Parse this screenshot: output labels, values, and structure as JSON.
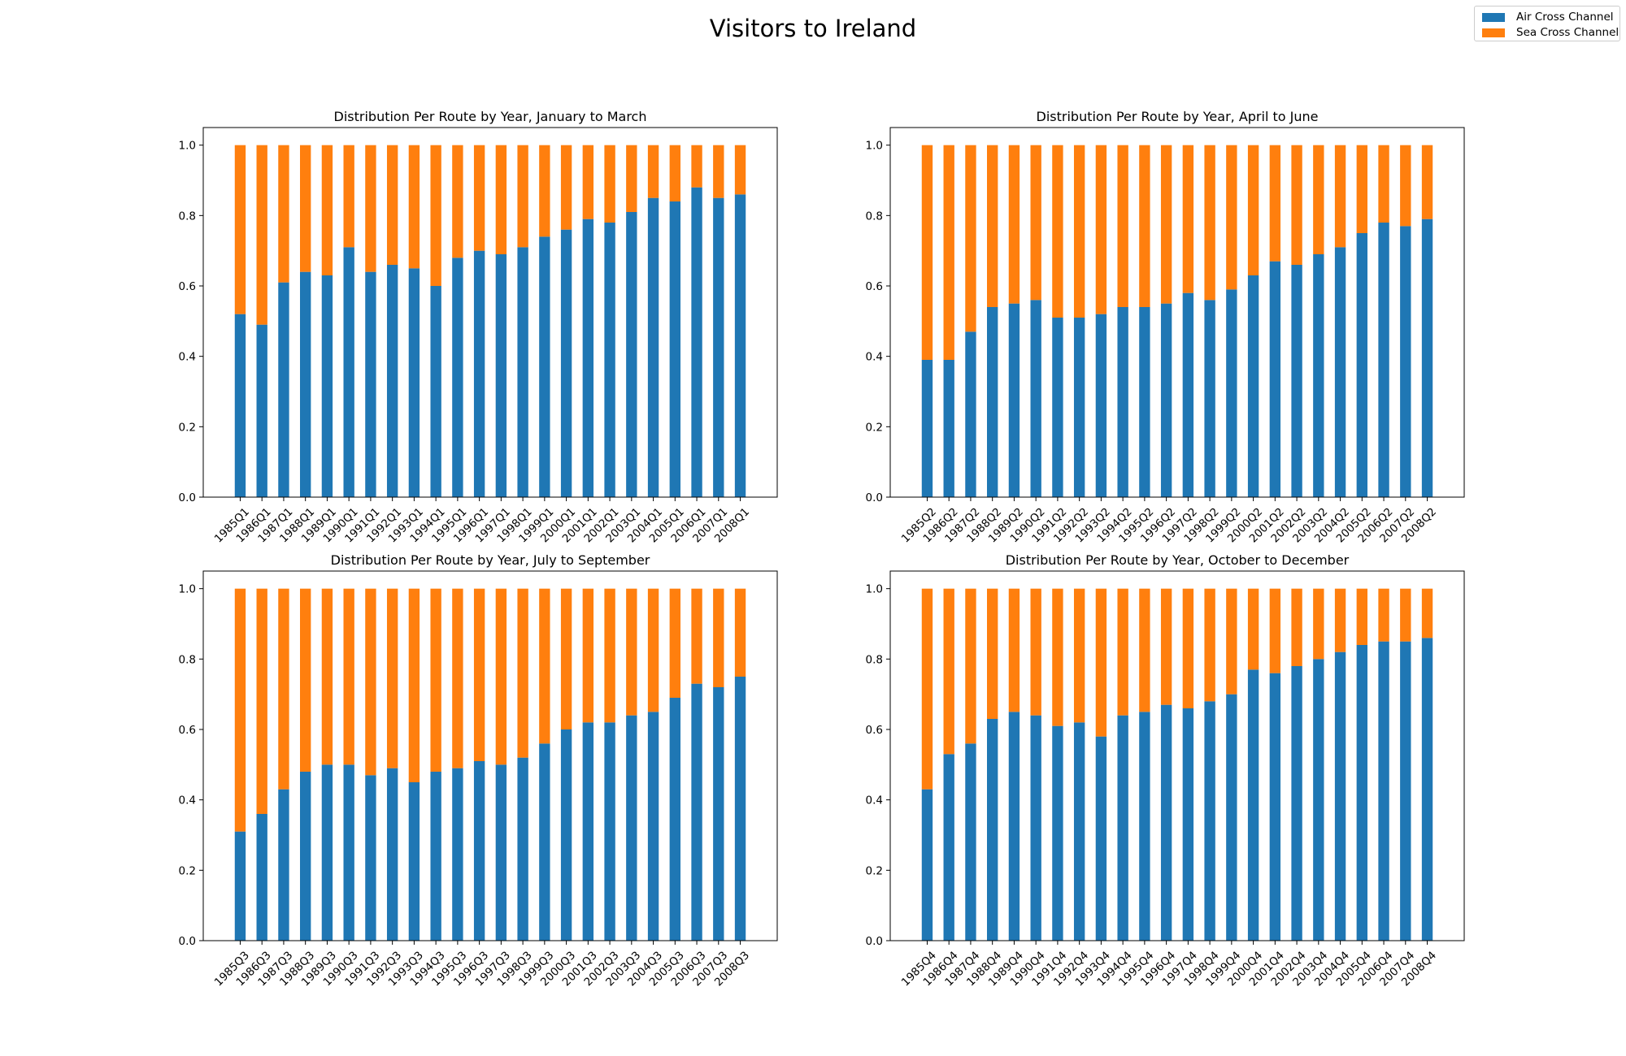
{
  "figure": {
    "title": "Visitors to Ireland"
  },
  "colors": {
    "air": "#1f77b4",
    "sea": "#ff7f0e"
  },
  "legend": {
    "position": "upper-right",
    "items": [
      {
        "label": "Air Cross Channel",
        "color": "#1f77b4"
      },
      {
        "label": "Sea Cross Channel",
        "color": "#ff7f0e"
      }
    ]
  },
  "chart_data": [
    {
      "type": "bar",
      "stacked": true,
      "title": "Distribution Per Route by Year, January to March",
      "categories": [
        "1985Q1",
        "1986Q1",
        "1987Q1",
        "1988Q1",
        "1989Q1",
        "1990Q1",
        "1991Q1",
        "1992Q1",
        "1993Q1",
        "1994Q1",
        "1995Q1",
        "1996Q1",
        "1997Q1",
        "1998Q1",
        "1999Q1",
        "2000Q1",
        "2001Q1",
        "2002Q1",
        "2003Q1",
        "2004Q1",
        "2005Q1",
        "2006Q1",
        "2007Q1",
        "2008Q1"
      ],
      "ylim": [
        0,
        1.05
      ],
      "yticks": [
        "0.0",
        "0.2",
        "0.4",
        "0.6",
        "0.8",
        "1.0"
      ],
      "series": [
        {
          "name": "Air Cross Channel",
          "values": [
            0.52,
            0.49,
            0.61,
            0.64,
            0.63,
            0.71,
            0.64,
            0.66,
            0.65,
            0.6,
            0.68,
            0.7,
            0.69,
            0.71,
            0.74,
            0.76,
            0.79,
            0.78,
            0.81,
            0.85,
            0.84,
            0.88,
            0.85,
            0.86
          ]
        },
        {
          "name": "Sea Cross Channel",
          "values": [
            0.48,
            0.51,
            0.39,
            0.36,
            0.37,
            0.29,
            0.36,
            0.34,
            0.35,
            0.4,
            0.32,
            0.3,
            0.31,
            0.29,
            0.26,
            0.24,
            0.21,
            0.22,
            0.19,
            0.15,
            0.16,
            0.12,
            0.15,
            0.14
          ]
        }
      ]
    },
    {
      "type": "bar",
      "stacked": true,
      "title": "Distribution Per Route by Year, April to June",
      "categories": [
        "1985Q2",
        "1986Q2",
        "1987Q2",
        "1988Q2",
        "1989Q2",
        "1990Q2",
        "1991Q2",
        "1992Q2",
        "1993Q2",
        "1994Q2",
        "1995Q2",
        "1996Q2",
        "1997Q2",
        "1998Q2",
        "1999Q2",
        "2000Q2",
        "2001Q2",
        "2002Q2",
        "2003Q2",
        "2004Q2",
        "2005Q2",
        "2006Q2",
        "2007Q2",
        "2008Q2"
      ],
      "ylim": [
        0,
        1.05
      ],
      "yticks": [
        "0.0",
        "0.2",
        "0.4",
        "0.6",
        "0.8",
        "1.0"
      ],
      "series": [
        {
          "name": "Air Cross Channel",
          "values": [
            0.39,
            0.39,
            0.47,
            0.54,
            0.55,
            0.56,
            0.51,
            0.51,
            0.52,
            0.54,
            0.54,
            0.55,
            0.58,
            0.56,
            0.59,
            0.63,
            0.67,
            0.66,
            0.69,
            0.71,
            0.75,
            0.78,
            0.77,
            0.79
          ]
        },
        {
          "name": "Sea Cross Channel",
          "values": [
            0.61,
            0.61,
            0.53,
            0.46,
            0.45,
            0.44,
            0.49,
            0.49,
            0.48,
            0.46,
            0.46,
            0.45,
            0.42,
            0.44,
            0.41,
            0.37,
            0.33,
            0.34,
            0.31,
            0.29,
            0.25,
            0.22,
            0.23,
            0.21
          ]
        }
      ]
    },
    {
      "type": "bar",
      "stacked": true,
      "title": "Distribution Per Route by Year, July to September",
      "categories": [
        "1985Q3",
        "1986Q3",
        "1987Q3",
        "1988Q3",
        "1989Q3",
        "1990Q3",
        "1991Q3",
        "1992Q3",
        "1993Q3",
        "1994Q3",
        "1995Q3",
        "1996Q3",
        "1997Q3",
        "1998Q3",
        "1999Q3",
        "2000Q3",
        "2001Q3",
        "2002Q3",
        "2003Q3",
        "2004Q3",
        "2005Q3",
        "2006Q3",
        "2007Q3",
        "2008Q3"
      ],
      "ylim": [
        0,
        1.05
      ],
      "yticks": [
        "0.0",
        "0.2",
        "0.4",
        "0.6",
        "0.8",
        "1.0"
      ],
      "series": [
        {
          "name": "Air Cross Channel",
          "values": [
            0.31,
            0.36,
            0.43,
            0.48,
            0.5,
            0.5,
            0.47,
            0.49,
            0.45,
            0.48,
            0.49,
            0.51,
            0.5,
            0.52,
            0.56,
            0.6,
            0.62,
            0.62,
            0.64,
            0.65,
            0.69,
            0.73,
            0.72,
            0.75
          ]
        },
        {
          "name": "Sea Cross Channel",
          "values": [
            0.69,
            0.64,
            0.57,
            0.52,
            0.5,
            0.5,
            0.53,
            0.51,
            0.55,
            0.52,
            0.51,
            0.49,
            0.5,
            0.48,
            0.44,
            0.4,
            0.38,
            0.38,
            0.36,
            0.35,
            0.31,
            0.27,
            0.28,
            0.25
          ]
        }
      ]
    },
    {
      "type": "bar",
      "stacked": true,
      "title": "Distribution Per Route by Year, October to December",
      "categories": [
        "1985Q4",
        "1986Q4",
        "1987Q4",
        "1988Q4",
        "1989Q4",
        "1990Q4",
        "1991Q4",
        "1992Q4",
        "1993Q4",
        "1994Q4",
        "1995Q4",
        "1996Q4",
        "1997Q4",
        "1998Q4",
        "1999Q4",
        "2000Q4",
        "2001Q4",
        "2002Q4",
        "2003Q4",
        "2004Q4",
        "2005Q4",
        "2006Q4",
        "2007Q4",
        "2008Q4"
      ],
      "ylim": [
        0,
        1.05
      ],
      "yticks": [
        "0.0",
        "0.2",
        "0.4",
        "0.6",
        "0.8",
        "1.0"
      ],
      "series": [
        {
          "name": "Air Cross Channel",
          "values": [
            0.43,
            0.53,
            0.56,
            0.63,
            0.65,
            0.64,
            0.61,
            0.62,
            0.58,
            0.64,
            0.65,
            0.67,
            0.66,
            0.68,
            0.7,
            0.77,
            0.76,
            0.78,
            0.8,
            0.82,
            0.84,
            0.85,
            0.85,
            0.86
          ]
        },
        {
          "name": "Sea Cross Channel",
          "values": [
            0.57,
            0.47,
            0.44,
            0.37,
            0.35,
            0.36,
            0.39,
            0.38,
            0.42,
            0.36,
            0.35,
            0.33,
            0.34,
            0.32,
            0.3,
            0.23,
            0.24,
            0.22,
            0.2,
            0.18,
            0.16,
            0.15,
            0.15,
            0.14
          ]
        }
      ]
    }
  ]
}
